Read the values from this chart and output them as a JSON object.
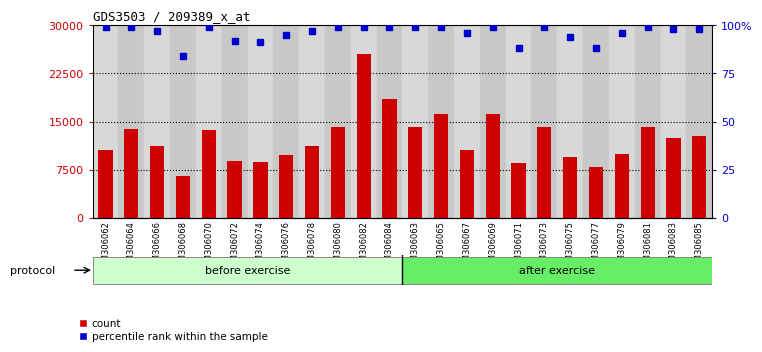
{
  "title": "GDS3503 / 209389_x_at",
  "categories": [
    "GSM306062",
    "GSM306064",
    "GSM306066",
    "GSM306068",
    "GSM306070",
    "GSM306072",
    "GSM306074",
    "GSM306076",
    "GSM306078",
    "GSM306080",
    "GSM306082",
    "GSM306084",
    "GSM306063",
    "GSM306065",
    "GSM306067",
    "GSM306069",
    "GSM306071",
    "GSM306073",
    "GSM306075",
    "GSM306077",
    "GSM306079",
    "GSM306081",
    "GSM306083",
    "GSM306085"
  ],
  "counts": [
    10500,
    13800,
    11200,
    6500,
    13700,
    8800,
    8700,
    9800,
    11200,
    14200,
    25500,
    18500,
    14200,
    16200,
    10500,
    16200,
    8500,
    14200,
    9500,
    8000,
    10000,
    14100,
    12500,
    12800
  ],
  "percentile_ranks": [
    99,
    99,
    97,
    84,
    99,
    92,
    91,
    95,
    97,
    99,
    99,
    99,
    99,
    99,
    96,
    99,
    88,
    99,
    94,
    88,
    96,
    99,
    98,
    98
  ],
  "before_count": 12,
  "after_count": 12,
  "bar_color": "#cc0000",
  "dot_color": "#0000cc",
  "ylim_left": [
    0,
    30000
  ],
  "ylim_right": [
    0,
    100
  ],
  "yticks_left": [
    0,
    7500,
    15000,
    22500,
    30000
  ],
  "yticks_right": [
    0,
    25,
    50,
    75,
    100
  ],
  "before_label": "before exercise",
  "after_label": "after exercise",
  "protocol_label": "protocol",
  "legend_count": "count",
  "legend_percentile": "percentile rank within the sample",
  "before_color": "#ccffcc",
  "after_color": "#66ee66",
  "col_bg_light": "#d8d8d8",
  "col_bg_dark": "#c8c8c8"
}
